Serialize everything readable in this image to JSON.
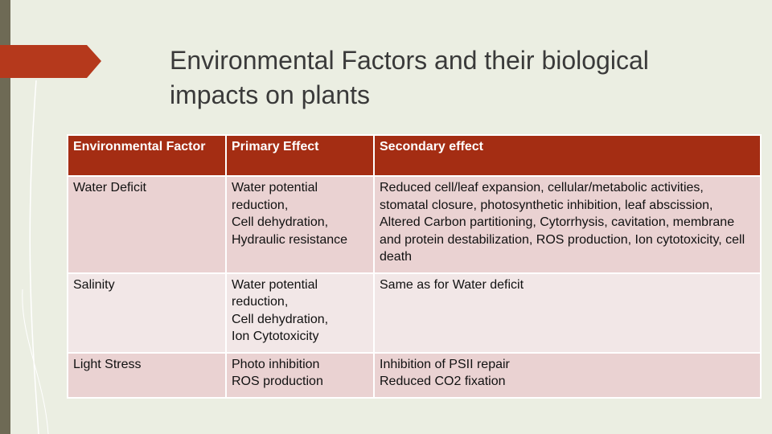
{
  "title": "Environmental Factors and their biological impacts on plants",
  "table": {
    "header": [
      "Environmental Factor",
      "Primary Effect",
      "Secondary effect"
    ],
    "rows": [
      [
        "Water Deficit",
        "Water potential reduction,\nCell dehydration, Hydraulic resistance",
        "Reduced cell/leaf expansion, cellular/metabolic activities, stomatal closure, photosynthetic inhibition, leaf abscission, Altered Carbon partitioning, Cytorrhysis, cavitation, membrane and protein destabilization, ROS production, Ion cytotoxicity, cell death"
      ],
      [
        "Salinity",
        "Water potential reduction,\nCell dehydration,\nIon Cytotoxicity",
        "Same as for Water deficit"
      ],
      [
        "Light Stress",
        "Photo inhibition\nROS production",
        "Inhibition of PSII repair\nReduced CO2 fixation"
      ]
    ]
  }
}
